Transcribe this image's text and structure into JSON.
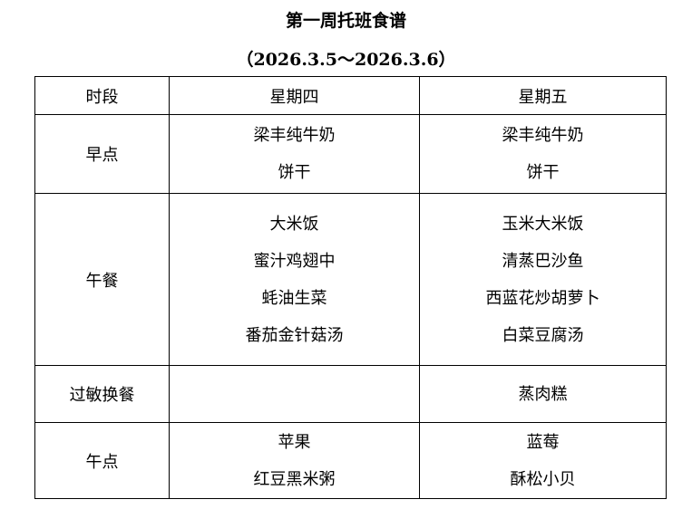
{
  "title": "第一周托班食谱",
  "date_range": "（2026.3.5～2026.3.6）",
  "headers": [
    "时段",
    "星期四",
    "星期五"
  ],
  "rows": [
    {
      "period": "早点",
      "thu": [
        "梁丰纯牛奶",
        "饼干"
      ],
      "fri": [
        "梁丰纯牛奶",
        "饼干"
      ]
    },
    {
      "period": "午餐",
      "thu": [
        "大米饭",
        "蜜汁鸡翅中",
        "蚝油生菜",
        "番茄金针菇汤"
      ],
      "fri": [
        "玉米大米饭",
        "清蒸巴沙鱼",
        "西蓝花炒胡萝卜",
        "白菜豆腐汤"
      ]
    },
    {
      "period": "过敏换餐",
      "thu": [],
      "fri": [
        "蒸肉糕"
      ]
    },
    {
      "period": "午点",
      "thu": [
        "苹果",
        "红豆黑米粥"
      ],
      "fri": [
        "蓝莓",
        "酥松小贝"
      ]
    }
  ]
}
